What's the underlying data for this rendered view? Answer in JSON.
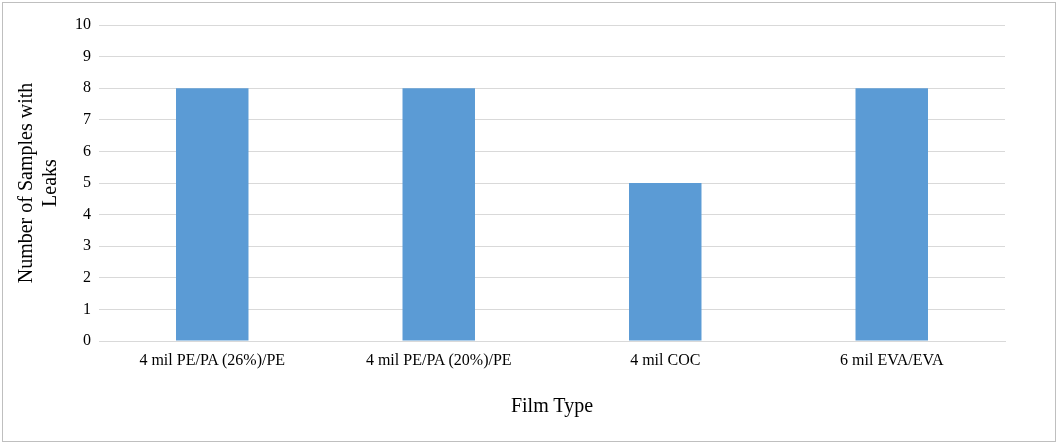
{
  "chart_data": {
    "type": "bar",
    "xlabel": "Film Type",
    "ylabel": "Number of Samples with Leaks",
    "categories": [
      "4 mil PE/PA (26%)/PE",
      "4 mil PE/PA (20%)/PE",
      "4 mil COC",
      "6 mil EVA/EVA"
    ],
    "values": [
      8,
      8,
      5,
      8
    ],
    "color": "#5b9bd5",
    "ylim": [
      0,
      10
    ],
    "yticks": [
      0,
      1,
      2,
      3,
      4,
      5,
      6,
      7,
      8,
      9,
      10
    ],
    "grid": "y",
    "legend": false
  }
}
